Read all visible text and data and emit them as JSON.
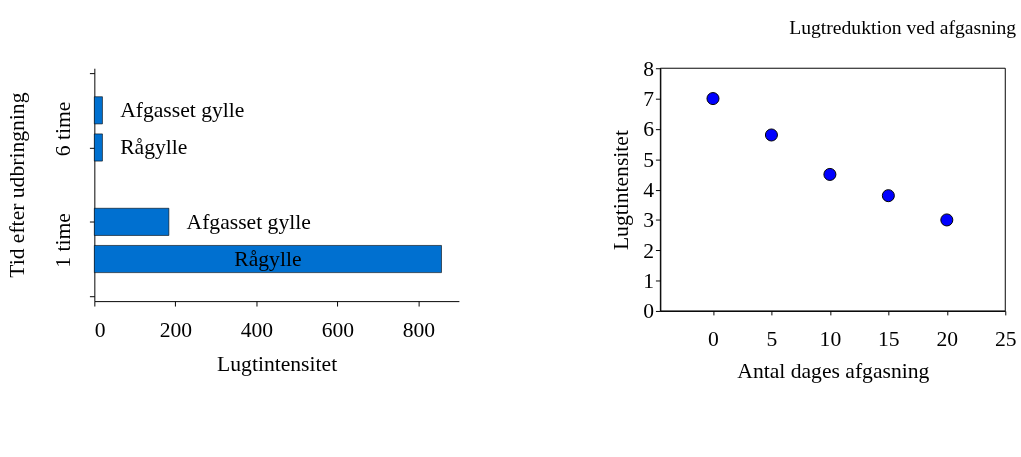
{
  "chart_data": [
    {
      "type": "bar",
      "orientation": "horizontal",
      "categories": [
        "Afgasset gylle",
        "Rågylle",
        null,
        "Afgasset gylle",
        "Rågylle"
      ],
      "values": [
        20,
        20,
        null,
        184,
        857
      ],
      "color": "#0070d0",
      "xlim": [
        0,
        900
      ],
      "xticks": [
        0,
        200,
        400,
        600,
        800
      ],
      "xlabel": "Lugtintensitet",
      "ylabel": "Tid efter udbringning",
      "annotations": [
        "6 time",
        "1 time"
      ],
      "tick_labels": "x",
      "grid": false
    },
    {
      "type": "scatter",
      "title": "Lugtreduktion ved afgasning",
      "x": [
        0,
        5,
        10,
        15,
        20
      ],
      "values": [
        7.0,
        5.8,
        4.5,
        3.8,
        3.0
      ],
      "color": "#0000ff",
      "marker": "circle",
      "xlim": [
        -4.5,
        25
      ],
      "xticks": [
        0,
        5,
        10,
        15,
        20,
        25
      ],
      "ylim": [
        0,
        8
      ],
      "yticks": [
        0,
        1,
        2,
        3,
        4,
        5,
        6,
        7,
        8
      ],
      "xlabel": "Antal dages afgasning",
      "ylabel": "Lugtintensitet",
      "grid": false
    }
  ]
}
